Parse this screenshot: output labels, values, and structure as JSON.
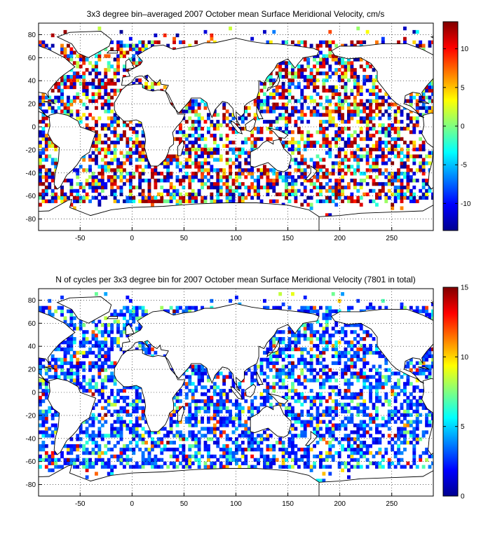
{
  "chart_data": [
    {
      "type": "heatmap",
      "title": "3x3 degree bin–averaged 2007 October mean Surface Meridional Velocity, cm/s",
      "xlabel": "",
      "ylabel": "",
      "xlim": [
        -90,
        290
      ],
      "ylim": [
        -90,
        90
      ],
      "xticks": [
        -50,
        0,
        50,
        100,
        150,
        200,
        250
      ],
      "yticks": [
        80,
        60,
        40,
        20,
        0,
        -20,
        -40,
        -60,
        -80
      ],
      "grid": true,
      "colorbar": {
        "range": [
          -13.5,
          13.5
        ],
        "ticks": [
          10,
          5,
          0,
          -5,
          -10
        ],
        "colormap": "jet"
      },
      "bin_size_deg": 3,
      "seed": 7
    },
    {
      "type": "heatmap",
      "title": "N of cycles per 3x3 degree bin for 2007 October mean Surface Meridional Velocity (7801 in total)",
      "xlabel": "",
      "ylabel": "",
      "xlim": [
        -90,
        290
      ],
      "ylim": [
        -90,
        90
      ],
      "xticks": [
        -50,
        0,
        50,
        100,
        150,
        200,
        250
      ],
      "yticks": [
        80,
        60,
        40,
        20,
        0,
        -20,
        -40,
        -60,
        -80
      ],
      "grid": true,
      "colorbar": {
        "range": [
          0,
          15
        ],
        "ticks": [
          15,
          10,
          5,
          0
        ],
        "colormap": "jet"
      },
      "bin_size_deg": 3,
      "seed": 19
    }
  ]
}
